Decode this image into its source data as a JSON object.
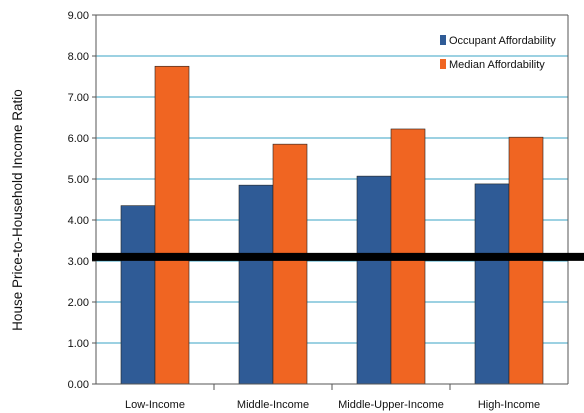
{
  "chart_data": {
    "type": "bar",
    "title": "",
    "xlabel": "",
    "ylabel": "House Price-to-Household Income Ratio",
    "ylim": [
      0,
      9
    ],
    "yticks": [
      "0.00",
      "1.00",
      "2.00",
      "3.00",
      "4.00",
      "5.00",
      "6.00",
      "7.00",
      "8.00",
      "9.00"
    ],
    "categories": [
      "Low-Income",
      "Middle-Income",
      "Middle-Upper-Income",
      "High-Income"
    ],
    "series": [
      {
        "name": "Occupant Affordability",
        "color": "#2f5b96",
        "values": [
          4.35,
          4.85,
          5.07,
          4.88
        ]
      },
      {
        "name": "Median Affordability",
        "color": "#f06522",
        "values": [
          7.75,
          5.85,
          6.22,
          6.02
        ]
      }
    ],
    "reference_line": {
      "value": 3.1,
      "color": "#000000"
    },
    "grid": true,
    "legend_position": "top-right"
  }
}
